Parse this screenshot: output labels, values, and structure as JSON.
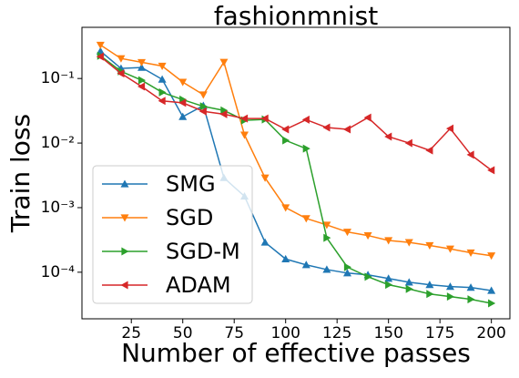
{
  "chart_data": {
    "type": "line",
    "title": "fashionmnist",
    "xlabel": "Number of effective passes",
    "ylabel": "Train loss",
    "log_y": true,
    "legend": "lower left",
    "x": [
      10,
      20,
      30,
      40,
      50,
      60,
      70,
      80,
      90,
      100,
      110,
      120,
      130,
      140,
      150,
      160,
      170,
      180,
      190,
      200
    ],
    "series": [
      {
        "name": "SMG",
        "color": "#1f77b4",
        "marker": "^",
        "values": [
          0.265,
          0.143,
          0.148,
          0.097,
          0.0256,
          0.038,
          0.0029,
          0.0015,
          0.00029,
          0.00016,
          0.00013,
          0.00011,
          9.7e-05,
          9.1e-05,
          8e-05,
          7e-05,
          6.4e-05,
          6e-05,
          5.8e-05,
          5.2e-05
        ]
      },
      {
        "name": "SGD",
        "color": "#ff7f0e",
        "marker": "v",
        "values": [
          0.33,
          0.204,
          0.178,
          0.156,
          0.088,
          0.056,
          0.179,
          0.0134,
          0.0029,
          0.001,
          0.00068,
          0.00054,
          0.00042,
          0.00037,
          0.00031,
          0.00029,
          0.00026,
          0.00023,
          0.0002,
          0.00018
        ]
      },
      {
        "name": "SGD-M",
        "color": "#2ca02c",
        "marker": ">",
        "values": [
          0.225,
          0.129,
          0.094,
          0.061,
          0.047,
          0.037,
          0.032,
          0.0225,
          0.0232,
          0.011,
          0.0082,
          0.00034,
          0.00012,
          8.5e-05,
          6.4e-05,
          5.5e-05,
          4.6e-05,
          4.2e-05,
          3.8e-05,
          3.3e-05
        ]
      },
      {
        "name": "ADAM",
        "color": "#d62728",
        "marker": "<",
        "values": [
          0.218,
          0.12,
          0.075,
          0.045,
          0.042,
          0.031,
          0.028,
          0.024,
          0.024,
          0.0163,
          0.023,
          0.0174,
          0.0163,
          0.0248,
          0.0126,
          0.01,
          0.0077,
          0.0168,
          0.0066,
          0.0038
        ]
      }
    ],
    "xlim": [
      1,
      209
    ],
    "xticks": [
      25,
      50,
      75,
      100,
      125,
      150,
      175,
      200
    ],
    "ylim": [
      1.9e-05,
      0.62
    ],
    "yticks": [
      {
        "value": 0.1,
        "label": "10⁻¹"
      },
      {
        "value": 0.01,
        "label": "10⁻²"
      },
      {
        "value": 0.001,
        "label": "10⁻³"
      },
      {
        "value": 0.0001,
        "label": "10⁻⁴"
      }
    ]
  }
}
